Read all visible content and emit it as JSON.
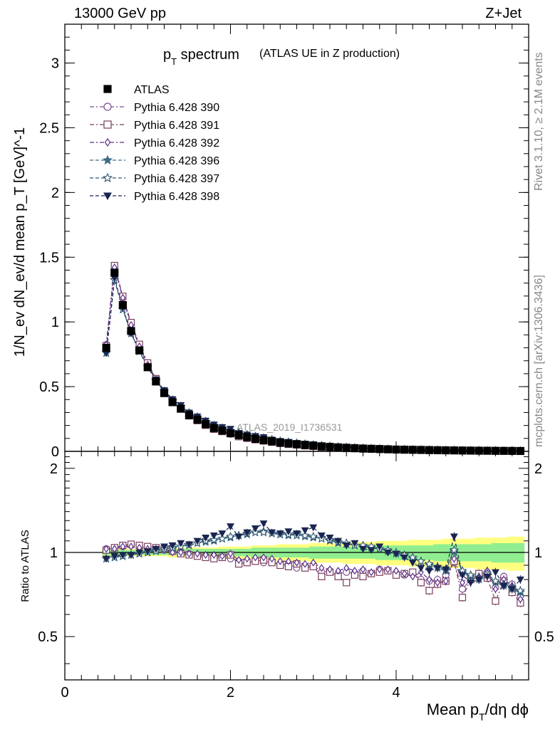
{
  "header": {
    "left": "13000 GeV pp",
    "right": "Z+Jet"
  },
  "side_labels": {
    "rivet": "Rivet 3.1.10, ≥ 2.1M events",
    "mcplots": "mcplots.cern.ch [arXiv:1306.3436]"
  },
  "colors": {
    "ratio_band_inner": "#90ee90",
    "ratio_band_outer": "#ffff80",
    "ATLAS": "#000000",
    "390": "#7d4f8f",
    "391": "#7a3e5e",
    "392": "#5a2e8c",
    "396": "#3f6b86",
    "397": "#2e5670",
    "398": "#1a2650"
  },
  "chart_data": [
    {
      "type": "line",
      "panel": "main",
      "title": "p_T spectrum",
      "title_main": "p",
      "title_sub": "T",
      "title_rest": " spectrum",
      "title_extra": "(ATLAS UE in Z production)",
      "watermark": "ATLAS_2019_I1736531",
      "ylabel": "1/N_ev dN_ev/d mean p_T [GeV]^-1",
      "xlim": [
        0,
        5.6
      ],
      "ylim": [
        0,
        3.3
      ],
      "yticks": [
        0,
        0.5,
        1,
        1.5,
        2,
        2.5,
        3
      ],
      "ytick_labels": [
        "0",
        "0.5",
        "1",
        "1.5",
        "2",
        "2.5",
        "3"
      ],
      "legend_position": "top-left",
      "x": [
        0.5,
        0.6,
        0.7,
        0.8,
        0.9,
        1.0,
        1.1,
        1.2,
        1.3,
        1.4,
        1.5,
        1.6,
        1.7,
        1.8,
        1.9,
        2.0,
        2.1,
        2.2,
        2.3,
        2.4,
        2.5,
        2.6,
        2.7,
        2.8,
        2.9,
        3.0,
        3.1,
        3.2,
        3.3,
        3.4,
        3.5,
        3.6,
        3.7,
        3.8,
        3.9,
        4.0,
        4.1,
        4.2,
        4.3,
        4.4,
        4.5,
        4.6,
        4.7,
        4.8,
        4.9,
        5.0,
        5.1,
        5.2,
        5.3,
        5.4,
        5.5
      ],
      "series": [
        {
          "name": "ATLAS",
          "label": "ATLAS",
          "marker": "filled-square",
          "line": "none",
          "values": [
            0.8,
            1.38,
            1.13,
            0.93,
            0.78,
            0.65,
            0.54,
            0.45,
            0.38,
            0.33,
            0.28,
            0.245,
            0.21,
            0.18,
            0.16,
            0.14,
            0.125,
            0.11,
            0.097,
            0.086,
            0.077,
            0.068,
            0.061,
            0.055,
            0.049,
            0.044,
            0.039,
            0.035,
            0.031,
            0.028,
            0.025,
            0.022,
            0.02,
            0.018,
            0.016,
            0.014,
            0.013,
            0.012,
            0.011,
            0.01,
            0.009,
            0.008,
            0.0072,
            0.0065,
            0.0058,
            0.0052,
            0.0047,
            0.0042,
            0.0038,
            0.0034,
            0.003
          ]
        },
        {
          "name": "390",
          "label": "Pythia 6.428 390",
          "marker": "open-circle",
          "line": "dash-dot",
          "color_key": "390",
          "ratio": [
            1.03,
            1.04,
            1.05,
            1.06,
            1.05,
            1.04,
            1.03,
            1.02,
            1.01,
            1.0,
            0.99,
            0.98,
            0.97,
            0.97,
            0.96,
            0.95,
            0.93,
            0.92,
            0.93,
            0.92,
            0.93,
            0.9,
            0.91,
            0.88,
            0.89,
            0.9,
            0.85,
            0.86,
            0.84,
            0.85,
            0.84,
            0.86,
            0.84,
            0.87,
            0.86,
            0.84,
            0.83,
            0.84,
            0.8,
            0.79,
            0.8,
            0.83,
            0.92,
            0.74,
            0.8,
            0.83,
            0.85,
            0.75,
            0.82,
            0.77,
            0.7
          ]
        },
        {
          "name": "391",
          "label": "Pythia 6.428 391",
          "marker": "open-square",
          "line": "dash-dot",
          "color_key": "391",
          "ratio": [
            1.02,
            1.04,
            1.06,
            1.07,
            1.06,
            1.05,
            1.04,
            1.03,
            1.01,
            0.99,
            0.98,
            0.97,
            0.96,
            0.95,
            0.96,
            0.98,
            0.91,
            0.92,
            0.93,
            0.94,
            0.92,
            0.9,
            0.89,
            0.91,
            0.88,
            0.89,
            0.82,
            0.85,
            0.82,
            0.78,
            0.83,
            0.82,
            0.84,
            0.85,
            0.86,
            0.83,
            0.84,
            0.85,
            0.78,
            0.73,
            0.77,
            0.79,
            0.93,
            0.69,
            0.8,
            0.84,
            0.81,
            0.67,
            0.79,
            0.72,
            0.66
          ]
        },
        {
          "name": "392",
          "label": "Pythia 6.428 392",
          "marker": "open-diamond",
          "line": "dash-dot",
          "color_key": "392",
          "ratio": [
            1.03,
            1.03,
            1.05,
            1.05,
            1.04,
            1.03,
            1.03,
            1.02,
            1.0,
            1.0,
            0.99,
            0.99,
            0.98,
            0.98,
            0.97,
            0.99,
            0.94,
            0.95,
            0.96,
            0.96,
            0.95,
            0.93,
            0.93,
            0.92,
            0.91,
            0.92,
            0.88,
            0.87,
            0.86,
            0.88,
            0.86,
            0.87,
            0.85,
            0.87,
            0.87,
            0.86,
            0.84,
            0.82,
            0.85,
            0.8,
            0.78,
            0.79,
            0.95,
            0.78,
            0.83,
            0.82,
            0.86,
            0.74,
            0.8,
            0.76,
            0.68
          ]
        },
        {
          "name": "396",
          "label": "Pythia 6.428 396",
          "marker": "filled-star",
          "line": "dashed",
          "color_key": "396",
          "ratio": [
            0.95,
            0.96,
            0.97,
            0.98,
            0.99,
            1.0,
            1.02,
            1.03,
            1.04,
            1.05,
            1.06,
            1.08,
            1.09,
            1.1,
            1.12,
            1.13,
            1.15,
            1.16,
            1.18,
            1.19,
            1.17,
            1.16,
            1.15,
            1.16,
            1.14,
            1.13,
            1.12,
            1.1,
            1.08,
            1.07,
            1.06,
            1.05,
            1.04,
            1.03,
            1.01,
            0.99,
            0.97,
            0.95,
            0.93,
            0.9,
            0.88,
            0.86,
            1.01,
            0.85,
            0.82,
            0.8,
            0.83,
            0.78,
            0.76,
            0.74,
            0.72
          ]
        },
        {
          "name": "397",
          "label": "Pythia 6.428 397",
          "marker": "open-star",
          "line": "dashed",
          "color_key": "397",
          "ratio": [
            0.95,
            0.96,
            0.97,
            0.98,
            0.99,
            1.0,
            1.01,
            1.03,
            1.04,
            1.05,
            1.06,
            1.08,
            1.1,
            1.11,
            1.12,
            1.14,
            1.15,
            1.17,
            1.18,
            1.18,
            1.17,
            1.16,
            1.16,
            1.15,
            1.15,
            1.14,
            1.12,
            1.11,
            1.09,
            1.08,
            1.06,
            1.06,
            1.05,
            1.03,
            1.02,
            1.0,
            0.98,
            0.96,
            0.93,
            0.91,
            0.89,
            0.87,
            1.02,
            0.86,
            0.83,
            0.81,
            0.84,
            0.79,
            0.77,
            0.75,
            0.73
          ]
        },
        {
          "name": "398",
          "label": "Pythia 6.428 398",
          "marker": "filled-triangle-down",
          "line": "dashed",
          "color_key": "398",
          "ratio": [
            0.95,
            0.97,
            0.98,
            0.98,
            1.0,
            1.01,
            1.03,
            1.05,
            1.06,
            1.08,
            1.07,
            1.1,
            1.13,
            1.15,
            1.17,
            1.24,
            1.14,
            1.18,
            1.22,
            1.27,
            1.18,
            1.17,
            1.19,
            1.17,
            1.2,
            1.23,
            1.15,
            1.13,
            1.1,
            1.06,
            1.08,
            1.03,
            1.02,
            1.05,
            1.0,
            0.99,
            0.96,
            0.92,
            0.88,
            0.86,
            0.88,
            0.87,
            1.14,
            0.83,
            0.78,
            0.8,
            0.82,
            0.85,
            0.76,
            0.74,
            0.8
          ]
        }
      ]
    },
    {
      "type": "line",
      "panel": "ratio",
      "ylabel": "Ratio to ATLAS",
      "xlabel": "Mean p_T/dη dϕ",
      "xlabel_main": "Mean p",
      "xlabel_sub": "T",
      "xlabel_rest": "/dη dϕ",
      "xlim": [
        0,
        5.6
      ],
      "ylim": [
        0.35,
        2.3
      ],
      "yticks": [
        0.5,
        1,
        2
      ],
      "ytick_labels": [
        "0.5",
        "1",
        "2"
      ],
      "xticks": [
        0,
        2,
        4
      ],
      "xtick_labels": [
        "0",
        "2",
        "4"
      ],
      "reference_line": 1,
      "band_inner_halfwidth": [
        0.02,
        0.02,
        0.02,
        0.02,
        0.02,
        0.02,
        0.02,
        0.02,
        0.02,
        0.03,
        0.03,
        0.03,
        0.03,
        0.03,
        0.03,
        0.03,
        0.03,
        0.03,
        0.04,
        0.04,
        0.04,
        0.04,
        0.04,
        0.04,
        0.04,
        0.05,
        0.05,
        0.05,
        0.05,
        0.05,
        0.05,
        0.05,
        0.05,
        0.06,
        0.06,
        0.06,
        0.06,
        0.06,
        0.06,
        0.06,
        0.07,
        0.07,
        0.07,
        0.07,
        0.07,
        0.07,
        0.07,
        0.08,
        0.08,
        0.08,
        0.08
      ],
      "band_outer_halfwidth": [
        0.03,
        0.03,
        0.03,
        0.03,
        0.03,
        0.03,
        0.03,
        0.03,
        0.04,
        0.04,
        0.04,
        0.04,
        0.04,
        0.04,
        0.05,
        0.05,
        0.05,
        0.05,
        0.06,
        0.06,
        0.06,
        0.07,
        0.07,
        0.07,
        0.07,
        0.08,
        0.08,
        0.08,
        0.08,
        0.09,
        0.09,
        0.09,
        0.09,
        0.1,
        0.1,
        0.1,
        0.1,
        0.11,
        0.11,
        0.11,
        0.11,
        0.12,
        0.12,
        0.12,
        0.12,
        0.13,
        0.13,
        0.13,
        0.13,
        0.14,
        0.14
      ]
    }
  ]
}
